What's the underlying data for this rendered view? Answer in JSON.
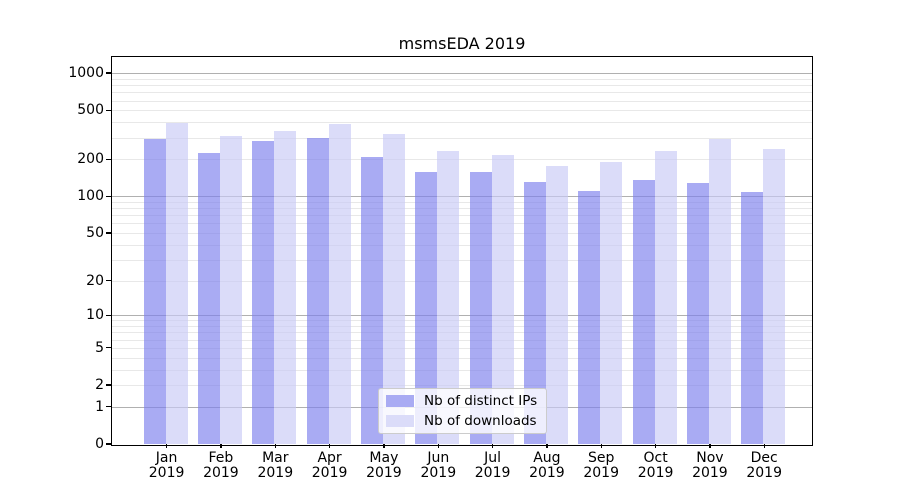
{
  "chart_data": {
    "type": "bar",
    "title": "msmsEDA 2019",
    "categories": [
      "Jan",
      "Feb",
      "Mar",
      "Apr",
      "May",
      "Jun",
      "Jul",
      "Aug",
      "Sep",
      "Oct",
      "Nov",
      "Dec"
    ],
    "year_label": "2019",
    "series": [
      {
        "name": "Nb of distinct IPs",
        "bar_color": "rgba(125,128,237,0.66)",
        "swatch_color": "#a9abf3",
        "values": [
          290,
          225,
          280,
          300,
          210,
          158,
          157,
          130,
          111,
          135,
          128,
          109
        ]
      },
      {
        "name": "Nb of downloads",
        "bar_color": "rgba(200,202,246,0.66)",
        "swatch_color": "#dbdcf9",
        "values": [
          395,
          310,
          340,
          385,
          320,
          232,
          218,
          178,
          191,
          233,
          291,
          242
        ]
      }
    ],
    "xlabel": "",
    "ylabel": "",
    "yscale": "log10(value+1)",
    "yticks": [
      0,
      1,
      2,
      5,
      10,
      20,
      50,
      100,
      200,
      500,
      1000
    ],
    "ylim": [
      0,
      1350
    ],
    "grid": {
      "major_values": [
        1,
        10,
        100,
        1000
      ],
      "minor_multipliers": [
        2,
        3,
        4,
        5,
        6,
        7,
        8,
        9
      ],
      "minor_decades": [
        1,
        10,
        100
      ],
      "major_color": "#b0b0b0",
      "minor_color": "#e8e8e8"
    },
    "legend_position": "lower center"
  }
}
